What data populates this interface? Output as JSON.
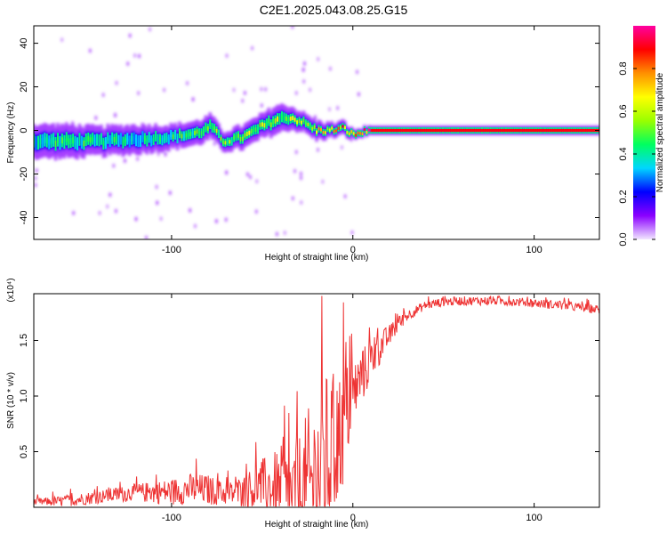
{
  "title": "C2E1.2025.043.08.25.G15",
  "chart_data": [
    {
      "type": "heatmap",
      "xlabel": "Height of straight line (km)",
      "ylabel": "Frequency (Hz)",
      "xlim": [
        -176,
        136
      ],
      "ylim": [
        -50,
        48
      ],
      "x_ticks": [
        -100,
        0,
        100
      ],
      "x_tick_labels": [
        "-100",
        "0",
        "100"
      ],
      "y_ticks": [
        -40,
        -20,
        0,
        20,
        40
      ],
      "y_tick_labels": [
        "-40",
        "-20",
        "0",
        "20",
        "40"
      ],
      "colorbar": {
        "label": "Normalized spectral amplitude",
        "range": [
          0,
          1
        ],
        "ticks": [
          0.0,
          0.2,
          0.4,
          0.6,
          0.8
        ],
        "tick_labels": [
          "0.0",
          "0.2",
          "0.4",
          "0.6",
          "0.8"
        ],
        "colors": [
          "#f2e6ff",
          "#8a00ff",
          "#0000ff",
          "#00d6ff",
          "#00ff60",
          "#9aff00",
          "#ffff00",
          "#ff9000",
          "#ff0000",
          "#ff00a0"
        ]
      },
      "ridge": {
        "x": [
          -176,
          -160,
          -140,
          -120,
          -100,
          -85,
          -78,
          -72,
          -60,
          -50,
          -42,
          -35,
          -28,
          -20,
          -12,
          -5,
          0,
          10,
          136
        ],
        "freq": [
          -5,
          -5,
          -5,
          -4,
          -3,
          -1,
          2,
          -5,
          -3,
          2,
          5,
          6,
          4,
          0,
          0,
          1,
          -2,
          0,
          0
        ],
        "width": [
          7,
          7,
          6,
          6,
          5,
          5,
          5,
          4,
          5,
          5,
          6,
          5,
          4,
          4,
          3,
          3,
          2,
          2,
          2
        ],
        "amplitude": [
          0.4,
          0.45,
          0.45,
          0.4,
          0.45,
          0.5,
          0.5,
          0.55,
          0.6,
          0.6,
          0.65,
          0.6,
          0.6,
          0.7,
          0.7,
          0.8,
          0.85,
          0.95,
          0.95
        ]
      }
    },
    {
      "type": "line",
      "xlabel": "Height of straight line (km)",
      "ylabel": "SNR (10 * v/v)",
      "multiplier": "(x10⁴)",
      "xlim": [
        -176,
        136
      ],
      "ylim": [
        0,
        1.92
      ],
      "x_ticks": [
        -100,
        0,
        100
      ],
      "x_tick_labels": [
        "-100",
        "0",
        "100"
      ],
      "y_ticks": [
        0.5,
        1.0,
        1.5
      ],
      "y_tick_labels": [
        "0.5",
        "1.0",
        "1.5"
      ],
      "color": "#ee3333",
      "x": [
        -176,
        -160,
        -140,
        -120,
        -100,
        -90,
        -80,
        -70,
        -60,
        -50,
        -45,
        -40,
        -35,
        -30,
        -25,
        -20,
        -15,
        -10,
        -5,
        0,
        5,
        10,
        15,
        20,
        25,
        30,
        40,
        50,
        60,
        80,
        100,
        120,
        136
      ],
      "y": [
        0.05,
        0.06,
        0.1,
        0.14,
        0.15,
        0.18,
        0.17,
        0.13,
        0.16,
        0.22,
        0.2,
        0.15,
        0.1,
        0.12,
        0.2,
        0.35,
        0.5,
        0.6,
        0.8,
        1.05,
        1.2,
        1.35,
        1.45,
        1.55,
        1.65,
        1.73,
        1.82,
        1.85,
        1.86,
        1.86,
        1.84,
        1.81,
        1.78
      ],
      "noise": [
        0.03,
        0.05,
        0.06,
        0.08,
        0.12,
        0.14,
        0.14,
        0.1,
        0.15,
        0.25,
        0.3,
        0.45,
        0.5,
        0.6,
        0.75,
        0.8,
        0.8,
        0.7,
        0.55,
        0.3,
        0.25,
        0.2,
        0.15,
        0.1,
        0.07,
        0.05,
        0.04,
        0.04,
        0.04,
        0.04,
        0.04,
        0.04,
        0.04
      ]
    }
  ]
}
